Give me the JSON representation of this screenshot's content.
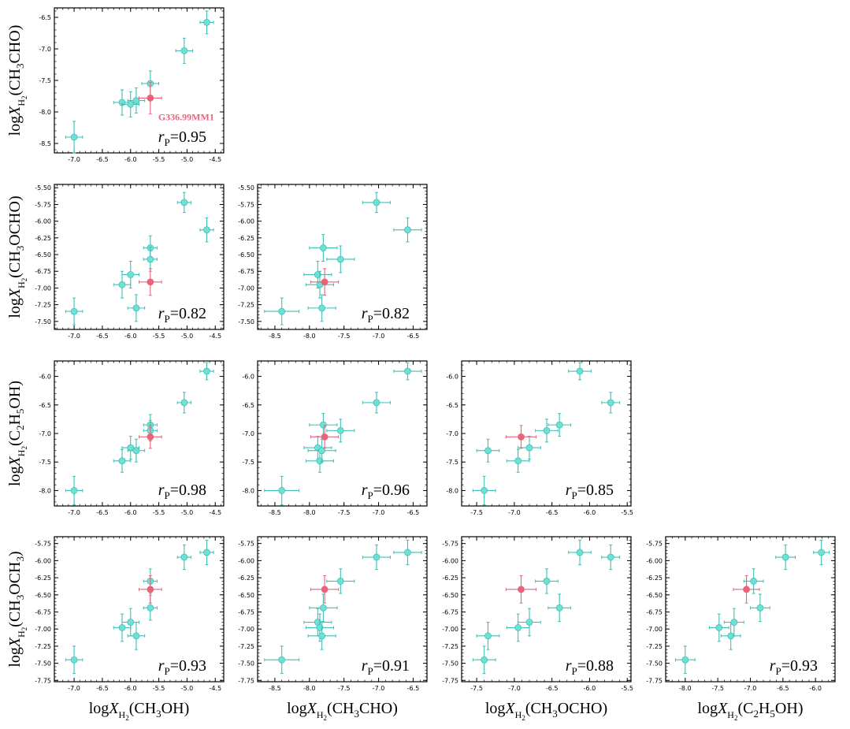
{
  "figure": {
    "highlight_color": "#e8647a",
    "point_color": "#6fe0d6",
    "error_color": "#3fbfb4",
    "annotation": "G336.99MM1"
  },
  "chart_data": [
    {
      "type": "scatter",
      "row": 0,
      "col": 0,
      "xlabel": "",
      "ylabel_mol": "CH₃CHO",
      "rp": "0.95",
      "xlim": [
        -7.35,
        -4.35
      ],
      "ylim": [
        -8.65,
        -6.35
      ],
      "xticks": [
        "-7.0",
        "-6.5",
        "-6.0",
        "-5.5",
        "-5.0",
        "-4.5"
      ],
      "yticks": [
        "-8.5",
        "-8.0",
        "-7.5",
        "-7.0",
        "-6.5"
      ],
      "points": [
        {
          "x": -7.0,
          "y": -8.4,
          "xe": 0.15,
          "ye": 0.25
        },
        {
          "x": -6.15,
          "y": -7.85,
          "xe": 0.15,
          "ye": 0.2
        },
        {
          "x": -6.0,
          "y": -7.88,
          "xe": 0.15,
          "ye": 0.2
        },
        {
          "x": -5.9,
          "y": -7.82,
          "xe": 0.15,
          "ye": 0.2
        },
        {
          "x": -5.65,
          "y": -7.55,
          "xe": 0.15,
          "ye": 0.2
        },
        {
          "x": -5.05,
          "y": -7.03,
          "xe": 0.15,
          "ye": 0.2
        },
        {
          "x": -4.65,
          "y": -6.58,
          "xe": 0.12,
          "ye": 0.18
        }
      ],
      "highlight": {
        "x": -5.65,
        "y": -7.78,
        "xe": 0.2,
        "ye": 0.25
      }
    },
    {
      "type": "scatter",
      "row": 1,
      "col": 0,
      "xlabel": "",
      "ylabel_mol": "CH₃OCHO",
      "rp": "0.82",
      "xlim": [
        -7.35,
        -4.35
      ],
      "ylim": [
        -7.62,
        -5.45
      ],
      "xticks": [
        "-7.0",
        "-6.5",
        "-6.0",
        "-5.5",
        "-5.0",
        "-4.5"
      ],
      "yticks": [
        "-7.50",
        "-7.25",
        "-7.00",
        "-6.75",
        "-6.50",
        "-6.25",
        "-6.00",
        "-5.75",
        "-5.50"
      ],
      "points": [
        {
          "x": -7.0,
          "y": -7.35,
          "xe": 0.15,
          "ye": 0.2
        },
        {
          "x": -6.15,
          "y": -6.95,
          "xe": 0.15,
          "ye": 0.2
        },
        {
          "x": -6.0,
          "y": -6.8,
          "xe": 0.15,
          "ye": 0.2
        },
        {
          "x": -5.9,
          "y": -7.3,
          "xe": 0.15,
          "ye": 0.2
        },
        {
          "x": -5.65,
          "y": -6.4,
          "xe": 0.12,
          "ye": 0.18
        },
        {
          "x": -5.65,
          "y": -6.57,
          "xe": 0.12,
          "ye": 0.18
        },
        {
          "x": -5.05,
          "y": -5.72,
          "xe": 0.12,
          "ye": 0.15
        },
        {
          "x": -4.65,
          "y": -6.13,
          "xe": 0.12,
          "ye": 0.18
        }
      ],
      "highlight": {
        "x": -5.65,
        "y": -6.91,
        "xe": 0.2,
        "ye": 0.2
      }
    },
    {
      "type": "scatter",
      "row": 1,
      "col": 1,
      "xlabel": "",
      "ylabel_mol": "",
      "rp": "0.82",
      "xlim": [
        -8.75,
        -6.3
      ],
      "ylim": [
        -7.62,
        -5.45
      ],
      "xticks": [
        "-8.5",
        "-8.0",
        "-7.5",
        "-7.0",
        "-6.5"
      ],
      "yticks": [
        "-7.50",
        "-7.25",
        "-7.00",
        "-6.75",
        "-6.50",
        "-6.25",
        "-6.00",
        "-5.75",
        "-5.50"
      ],
      "points": [
        {
          "x": -8.4,
          "y": -7.35,
          "xe": 0.25,
          "ye": 0.2
        },
        {
          "x": -7.88,
          "y": -6.8,
          "xe": 0.2,
          "ye": 0.2
        },
        {
          "x": -7.85,
          "y": -6.95,
          "xe": 0.2,
          "ye": 0.2
        },
        {
          "x": -7.82,
          "y": -7.3,
          "xe": 0.2,
          "ye": 0.2
        },
        {
          "x": -7.8,
          "y": -6.4,
          "xe": 0.2,
          "ye": 0.2
        },
        {
          "x": -7.55,
          "y": -6.57,
          "xe": 0.2,
          "ye": 0.2
        },
        {
          "x": -7.03,
          "y": -5.72,
          "xe": 0.2,
          "ye": 0.15
        },
        {
          "x": -6.58,
          "y": -6.13,
          "xe": 0.2,
          "ye": 0.18
        }
      ],
      "highlight": {
        "x": -7.78,
        "y": -6.91,
        "xe": 0.2,
        "ye": 0.2
      }
    },
    {
      "type": "scatter",
      "row": 2,
      "col": 0,
      "xlabel": "",
      "ylabel_mol": "C₂H₅OH",
      "rp": "0.98",
      "xlim": [
        -7.35,
        -4.35
      ],
      "ylim": [
        -8.27,
        -5.73
      ],
      "xticks": [
        "-7.0",
        "-6.5",
        "-6.0",
        "-5.5",
        "-5.0",
        "-4.5"
      ],
      "yticks": [
        "-8.0",
        "-7.5",
        "-7.0",
        "-6.5",
        "-6.0"
      ],
      "points": [
        {
          "x": -7.0,
          "y": -8.0,
          "xe": 0.15,
          "ye": 0.25
        },
        {
          "x": -6.15,
          "y": -7.48,
          "xe": 0.15,
          "ye": 0.2
        },
        {
          "x": -6.0,
          "y": -7.25,
          "xe": 0.15,
          "ye": 0.2
        },
        {
          "x": -5.9,
          "y": -7.3,
          "xe": 0.15,
          "ye": 0.2
        },
        {
          "x": -5.65,
          "y": -6.85,
          "xe": 0.12,
          "ye": 0.18
        },
        {
          "x": -5.65,
          "y": -6.95,
          "xe": 0.12,
          "ye": 0.18
        },
        {
          "x": -5.05,
          "y": -6.46,
          "xe": 0.12,
          "ye": 0.18
        },
        {
          "x": -4.65,
          "y": -5.91,
          "xe": 0.12,
          "ye": 0.15
        }
      ],
      "highlight": {
        "x": -5.65,
        "y": -7.06,
        "xe": 0.2,
        "ye": 0.2
      }
    },
    {
      "type": "scatter",
      "row": 2,
      "col": 1,
      "xlabel": "",
      "ylabel_mol": "",
      "rp": "0.96",
      "xlim": [
        -8.75,
        -6.3
      ],
      "ylim": [
        -8.27,
        -5.73
      ],
      "xticks": [
        "-8.5",
        "-8.0",
        "-7.5",
        "-7.0",
        "-6.5"
      ],
      "yticks": [
        "-8.0",
        "-7.5",
        "-7.0",
        "-6.5",
        "-6.0"
      ],
      "points": [
        {
          "x": -8.4,
          "y": -8.0,
          "xe": 0.25,
          "ye": 0.25
        },
        {
          "x": -7.88,
          "y": -7.25,
          "xe": 0.2,
          "ye": 0.2
        },
        {
          "x": -7.85,
          "y": -7.48,
          "xe": 0.2,
          "ye": 0.2
        },
        {
          "x": -7.82,
          "y": -7.3,
          "xe": 0.2,
          "ye": 0.2
        },
        {
          "x": -7.8,
          "y": -6.85,
          "xe": 0.2,
          "ye": 0.2
        },
        {
          "x": -7.55,
          "y": -6.95,
          "xe": 0.2,
          "ye": 0.2
        },
        {
          "x": -7.03,
          "y": -6.46,
          "xe": 0.2,
          "ye": 0.18
        },
        {
          "x": -6.58,
          "y": -5.91,
          "xe": 0.2,
          "ye": 0.15
        }
      ],
      "highlight": {
        "x": -7.78,
        "y": -7.06,
        "xe": 0.2,
        "ye": 0.2
      }
    },
    {
      "type": "scatter",
      "row": 2,
      "col": 2,
      "xlabel": "",
      "ylabel_mol": "",
      "rp": "0.85",
      "xlim": [
        -7.7,
        -5.45
      ],
      "ylim": [
        -8.27,
        -5.73
      ],
      "xticks": [
        "-7.5",
        "-7.0",
        "-6.5",
        "-6.0",
        "-5.5"
      ],
      "yticks": [
        "-8.0",
        "-7.5",
        "-7.0",
        "-6.5",
        "-6.0"
      ],
      "points": [
        {
          "x": -7.4,
          "y": -8.0,
          "xe": 0.15,
          "ye": 0.25
        },
        {
          "x": -7.35,
          "y": -7.3,
          "xe": 0.15,
          "ye": 0.2
        },
        {
          "x": -6.95,
          "y": -7.48,
          "xe": 0.15,
          "ye": 0.2
        },
        {
          "x": -6.8,
          "y": -7.25,
          "xe": 0.15,
          "ye": 0.2
        },
        {
          "x": -6.57,
          "y": -6.95,
          "xe": 0.15,
          "ye": 0.2
        },
        {
          "x": -6.4,
          "y": -6.85,
          "xe": 0.15,
          "ye": 0.2
        },
        {
          "x": -6.13,
          "y": -5.91,
          "xe": 0.15,
          "ye": 0.15
        },
        {
          "x": -5.72,
          "y": -6.46,
          "xe": 0.12,
          "ye": 0.18
        }
      ],
      "highlight": {
        "x": -6.91,
        "y": -7.06,
        "xe": 0.2,
        "ye": 0.2
      }
    },
    {
      "type": "scatter",
      "row": 3,
      "col": 0,
      "xlabel": "CH₃OH",
      "ylabel_mol": "CH₃OCH₃",
      "rp": "0.93",
      "xlim": [
        -7.35,
        -4.35
      ],
      "ylim": [
        -7.77,
        -5.65
      ],
      "xticks": [
        "-7.0",
        "-6.5",
        "-6.0",
        "-5.5",
        "-5.0",
        "-4.5"
      ],
      "yticks": [
        "-7.75",
        "-7.50",
        "-7.25",
        "-7.00",
        "-6.75",
        "-6.50",
        "-6.25",
        "-6.00",
        "-5.75"
      ],
      "points": [
        {
          "x": -7.0,
          "y": -7.45,
          "xe": 0.15,
          "ye": 0.2
        },
        {
          "x": -6.15,
          "y": -6.98,
          "xe": 0.15,
          "ye": 0.2
        },
        {
          "x": -6.0,
          "y": -6.9,
          "xe": 0.15,
          "ye": 0.2
        },
        {
          "x": -5.9,
          "y": -7.1,
          "xe": 0.15,
          "ye": 0.2
        },
        {
          "x": -5.65,
          "y": -6.3,
          "xe": 0.12,
          "ye": 0.18
        },
        {
          "x": -5.65,
          "y": -6.69,
          "xe": 0.12,
          "ye": 0.18
        },
        {
          "x": -5.05,
          "y": -5.95,
          "xe": 0.12,
          "ye": 0.18
        },
        {
          "x": -4.65,
          "y": -5.88,
          "xe": 0.12,
          "ye": 0.18
        }
      ],
      "highlight": {
        "x": -5.65,
        "y": -6.42,
        "xe": 0.2,
        "ye": 0.2
      }
    },
    {
      "type": "scatter",
      "row": 3,
      "col": 1,
      "xlabel": "CH₃CHO",
      "ylabel_mol": "",
      "rp": "0.91",
      "xlim": [
        -8.75,
        -6.3
      ],
      "ylim": [
        -7.77,
        -5.65
      ],
      "xticks": [
        "-8.5",
        "-8.0",
        "-7.5",
        "-7.0",
        "-6.5"
      ],
      "yticks": [
        "-7.75",
        "-7.50",
        "-7.25",
        "-7.00",
        "-6.75",
        "-6.50",
        "-6.25",
        "-6.00",
        "-5.75"
      ],
      "points": [
        {
          "x": -8.4,
          "y": -7.45,
          "xe": 0.25,
          "ye": 0.2
        },
        {
          "x": -7.88,
          "y": -6.9,
          "xe": 0.2,
          "ye": 0.2
        },
        {
          "x": -7.85,
          "y": -6.98,
          "xe": 0.2,
          "ye": 0.2
        },
        {
          "x": -7.82,
          "y": -7.1,
          "xe": 0.2,
          "ye": 0.2
        },
        {
          "x": -7.8,
          "y": -6.69,
          "xe": 0.2,
          "ye": 0.2
        },
        {
          "x": -7.55,
          "y": -6.3,
          "xe": 0.2,
          "ye": 0.18
        },
        {
          "x": -7.03,
          "y": -5.95,
          "xe": 0.2,
          "ye": 0.18
        },
        {
          "x": -6.58,
          "y": -5.88,
          "xe": 0.2,
          "ye": 0.18
        }
      ],
      "highlight": {
        "x": -7.78,
        "y": -6.42,
        "xe": 0.2,
        "ye": 0.2
      }
    },
    {
      "type": "scatter",
      "row": 3,
      "col": 2,
      "xlabel": "CH₃OCHO",
      "ylabel_mol": "",
      "rp": "0.88",
      "xlim": [
        -7.7,
        -5.45
      ],
      "ylim": [
        -7.77,
        -5.65
      ],
      "xticks": [
        "-7.5",
        "-7.0",
        "-6.5",
        "-6.0",
        "-5.5"
      ],
      "yticks": [
        "-7.75",
        "-7.50",
        "-7.25",
        "-7.00",
        "-6.75",
        "-6.50",
        "-6.25",
        "-6.00",
        "-5.75"
      ],
      "points": [
        {
          "x": -7.4,
          "y": -7.45,
          "xe": 0.15,
          "ye": 0.2
        },
        {
          "x": -7.35,
          "y": -7.1,
          "xe": 0.15,
          "ye": 0.2
        },
        {
          "x": -6.95,
          "y": -6.98,
          "xe": 0.15,
          "ye": 0.2
        },
        {
          "x": -6.8,
          "y": -6.9,
          "xe": 0.15,
          "ye": 0.2
        },
        {
          "x": -6.57,
          "y": -6.3,
          "xe": 0.15,
          "ye": 0.18
        },
        {
          "x": -6.4,
          "y": -6.69,
          "xe": 0.15,
          "ye": 0.2
        },
        {
          "x": -6.13,
          "y": -5.88,
          "xe": 0.15,
          "ye": 0.18
        },
        {
          "x": -5.72,
          "y": -5.95,
          "xe": 0.12,
          "ye": 0.18
        }
      ],
      "highlight": {
        "x": -6.91,
        "y": -6.42,
        "xe": 0.2,
        "ye": 0.2
      }
    },
    {
      "type": "scatter",
      "row": 3,
      "col": 3,
      "xlabel": "C₂H₅OH",
      "ylabel_mol": "",
      "rp": "0.93",
      "xlim": [
        -8.3,
        -5.7
      ],
      "ylim": [
        -7.77,
        -5.65
      ],
      "xticks": [
        "-8.0",
        "-7.5",
        "-7.0",
        "-6.5",
        "-6.0"
      ],
      "yticks": [
        "-7.75",
        "-7.50",
        "-7.25",
        "-7.00",
        "-6.75",
        "-6.50",
        "-6.25",
        "-6.00",
        "-5.75"
      ],
      "points": [
        {
          "x": -8.0,
          "y": -7.45,
          "xe": 0.15,
          "ye": 0.2
        },
        {
          "x": -7.48,
          "y": -6.98,
          "xe": 0.15,
          "ye": 0.2
        },
        {
          "x": -7.3,
          "y": -7.1,
          "xe": 0.15,
          "ye": 0.2
        },
        {
          "x": -7.25,
          "y": -6.9,
          "xe": 0.15,
          "ye": 0.2
        },
        {
          "x": -6.95,
          "y": -6.3,
          "xe": 0.15,
          "ye": 0.18
        },
        {
          "x": -6.85,
          "y": -6.69,
          "xe": 0.15,
          "ye": 0.2
        },
        {
          "x": -6.46,
          "y": -5.95,
          "xe": 0.15,
          "ye": 0.18
        },
        {
          "x": -5.91,
          "y": -5.88,
          "xe": 0.12,
          "ye": 0.18
        }
      ],
      "highlight": {
        "x": -7.06,
        "y": -6.42,
        "xe": 0.2,
        "ye": 0.2
      }
    }
  ]
}
